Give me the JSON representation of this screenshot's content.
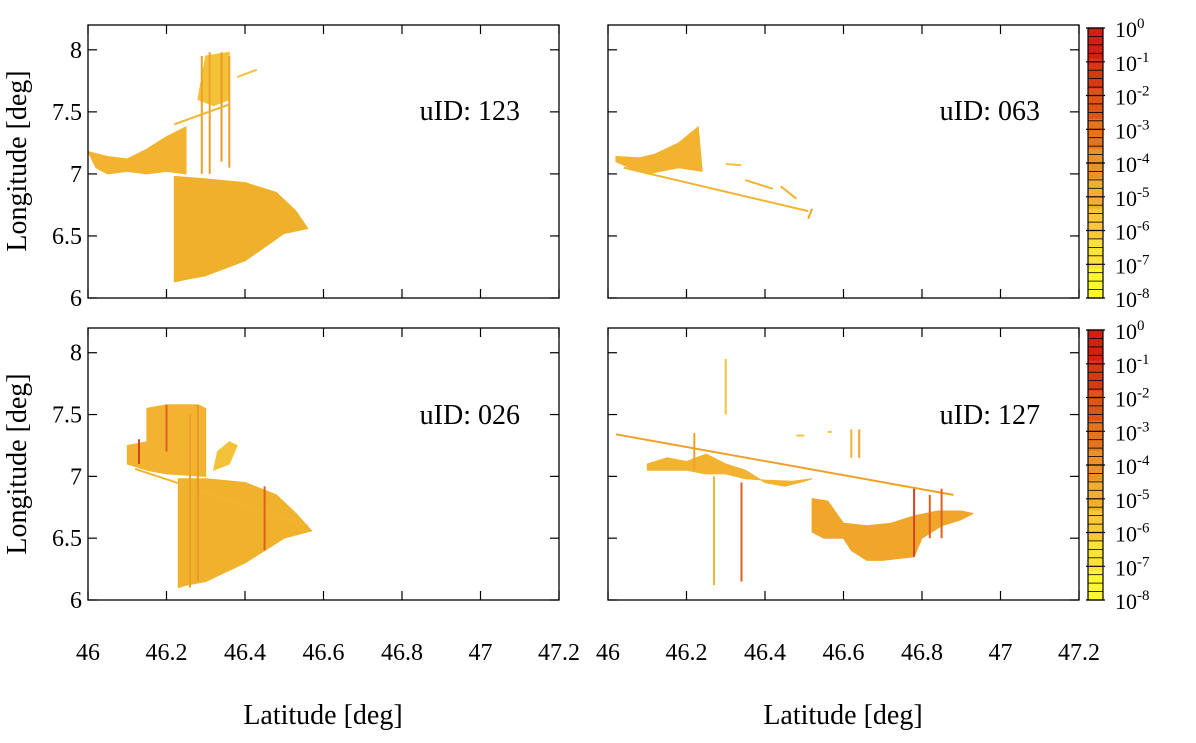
{
  "chart_data": [
    {
      "type": "scatter",
      "panel": "top-left",
      "label": "uID: 123",
      "xlim": [
        46,
        47.2
      ],
      "ylim": [
        6,
        8.2
      ],
      "xticks": [
        "46",
        "46.2",
        "46.4",
        "46.6",
        "46.8",
        "47",
        "47.2"
      ],
      "yticks": [
        "6",
        "6.5",
        "7",
        "7.5",
        "8"
      ],
      "xlabel": "",
      "ylabel": "Longitude [deg]",
      "polys": [
        {
          "pts": [
            [
              46.0,
              7.18
            ],
            [
              46.05,
              7.14
            ],
            [
              46.1,
              7.12
            ],
            [
              46.15,
              7.2
            ],
            [
              46.2,
              7.3
            ],
            [
              46.25,
              7.38
            ],
            [
              46.25,
              7.0
            ],
            [
              46.2,
              7.02
            ],
            [
              46.15,
              7.0
            ],
            [
              46.1,
              7.02
            ],
            [
              46.05,
              7.0
            ],
            [
              46.02,
              7.05
            ]
          ],
          "color": "#f2b430"
        },
        {
          "pts": [
            [
              46.22,
              6.98
            ],
            [
              46.3,
              6.96
            ],
            [
              46.4,
              6.93
            ],
            [
              46.48,
              6.85
            ],
            [
              46.53,
              6.7
            ],
            [
              46.56,
              6.56
            ],
            [
              46.5,
              6.52
            ],
            [
              46.4,
              6.3
            ],
            [
              46.3,
              6.18
            ],
            [
              46.25,
              6.15
            ],
            [
              46.22,
              6.13
            ]
          ],
          "color": "#efb02c"
        },
        {
          "pts": [
            [
              46.28,
              7.6
            ],
            [
              46.3,
              7.95
            ],
            [
              46.36,
              7.98
            ],
            [
              46.36,
              7.6
            ],
            [
              46.32,
              7.55
            ]
          ],
          "color": "#f4c238"
        }
      ],
      "strokes": [
        {
          "x": [
            46.29,
            46.29
          ],
          "y": [
            7.0,
            7.95
          ],
          "color": "#eea028"
        },
        {
          "x": [
            46.31,
            46.31
          ],
          "y": [
            7.0,
            7.98
          ],
          "color": "#eea028"
        },
        {
          "x": [
            46.34,
            46.34
          ],
          "y": [
            7.1,
            7.98
          ],
          "color": "#e89a24"
        },
        {
          "x": [
            46.36,
            46.36
          ],
          "y": [
            7.05,
            7.95
          ],
          "color": "#eea028"
        },
        {
          "x": [
            46.38,
            46.43
          ],
          "y": [
            7.78,
            7.84
          ],
          "color": "#f4c238"
        },
        {
          "x": [
            46.22,
            46.36
          ],
          "y": [
            7.4,
            7.56
          ],
          "color": "#f2b430"
        }
      ]
    },
    {
      "type": "scatter",
      "panel": "top-right",
      "label": "uID: 063",
      "xlim": [
        46,
        47.2
      ],
      "ylim": [
        6,
        8.2
      ],
      "xticks": [
        "46",
        "46.2",
        "46.4",
        "46.6",
        "46.8",
        "47",
        "47.2"
      ],
      "yticks": [
        "6",
        "6.5",
        "7",
        "7.5",
        "8"
      ],
      "xlabel": "",
      "ylabel": "",
      "polys": [
        {
          "pts": [
            [
              46.02,
              7.14
            ],
            [
              46.08,
              7.13
            ],
            [
              46.12,
              7.16
            ],
            [
              46.18,
              7.25
            ],
            [
              46.23,
              7.38
            ],
            [
              46.24,
              7.02
            ],
            [
              46.18,
              7.05
            ],
            [
              46.1,
              7.0
            ],
            [
              46.06,
              7.04
            ],
            [
              46.02,
              7.1
            ]
          ],
          "color": "#f2b430"
        }
      ],
      "strokes": [
        {
          "x": [
            46.04,
            46.51
          ],
          "y": [
            7.05,
            6.7
          ],
          "color": "#f2b430"
        },
        {
          "x": [
            46.51,
            46.52
          ],
          "y": [
            6.64,
            6.72
          ],
          "color": "#efa62a"
        },
        {
          "x": [
            46.35,
            46.42
          ],
          "y": [
            6.95,
            6.88
          ],
          "color": "#f2b430"
        },
        {
          "x": [
            46.44,
            46.48
          ],
          "y": [
            6.9,
            6.8
          ],
          "color": "#f2b430"
        },
        {
          "x": [
            46.3,
            46.34
          ],
          "y": [
            7.08,
            7.07
          ],
          "color": "#f4c238"
        }
      ]
    },
    {
      "type": "scatter",
      "panel": "bottom-left",
      "label": "uID: 026",
      "xlim": [
        46,
        47.2
      ],
      "ylim": [
        6,
        8.2
      ],
      "xticks": [
        "46",
        "46.2",
        "46.4",
        "46.6",
        "46.8",
        "47",
        "47.2"
      ],
      "yticks": [
        "6",
        "6.5",
        "7",
        "7.5",
        "8"
      ],
      "xlabel": "Latitude [deg]",
      "ylabel": "Longitude [deg]",
      "polys": [
        {
          "pts": [
            [
              46.1,
              7.25
            ],
            [
              46.15,
              7.28
            ],
            [
              46.15,
              7.55
            ],
            [
              46.2,
              7.58
            ],
            [
              46.28,
              7.58
            ],
            [
              46.3,
              7.55
            ],
            [
              46.3,
              7.0
            ],
            [
              46.2,
              7.02
            ],
            [
              46.15,
              7.05
            ],
            [
              46.1,
              7.1
            ]
          ],
          "color": "#f2b430"
        },
        {
          "pts": [
            [
              46.23,
              6.98
            ],
            [
              46.3,
              6.98
            ],
            [
              46.4,
              6.95
            ],
            [
              46.48,
              6.85
            ],
            [
              46.53,
              6.7
            ],
            [
              46.57,
              6.56
            ],
            [
              46.5,
              6.5
            ],
            [
              46.4,
              6.3
            ],
            [
              46.3,
              6.15
            ],
            [
              46.25,
              6.12
            ],
            [
              46.23,
              6.1
            ]
          ],
          "color": "#f0b22c"
        },
        {
          "pts": [
            [
              46.32,
              7.05
            ],
            [
              46.36,
              7.1
            ],
            [
              46.38,
              7.25
            ],
            [
              46.36,
              7.28
            ],
            [
              46.33,
              7.2
            ]
          ],
          "color": "#f4c238"
        }
      ],
      "strokes": [
        {
          "x": [
            46.12,
            46.56
          ],
          "y": [
            7.06,
            6.6
          ],
          "color": "#f2b430"
        },
        {
          "x": [
            46.13,
            46.13
          ],
          "y": [
            7.1,
            7.3
          ],
          "color": "#d2431f"
        },
        {
          "x": [
            46.2,
            46.2
          ],
          "y": [
            7.2,
            7.58
          ],
          "color": "#e06020"
        },
        {
          "x": [
            46.26,
            46.26
          ],
          "y": [
            6.1,
            7.5
          ],
          "color": "#eea028"
        },
        {
          "x": [
            46.28,
            46.28
          ],
          "y": [
            6.15,
            7.58
          ],
          "color": "#e89a24"
        },
        {
          "x": [
            46.45,
            46.45
          ],
          "y": [
            6.4,
            6.92
          ],
          "color": "#e06020"
        }
      ]
    },
    {
      "type": "scatter",
      "panel": "bottom-right",
      "label": "uID: 127",
      "xlim": [
        46,
        47.2
      ],
      "ylim": [
        6,
        8.2
      ],
      "xticks": [
        "46",
        "46.2",
        "46.4",
        "46.6",
        "46.8",
        "47",
        "47.2"
      ],
      "yticks": [
        "6",
        "6.5",
        "7",
        "7.5",
        "8"
      ],
      "xlabel": "Latitude [deg]",
      "ylabel": "",
      "polys": [
        {
          "pts": [
            [
              46.1,
              7.1
            ],
            [
              46.15,
              7.15
            ],
            [
              46.2,
              7.12
            ],
            [
              46.25,
              7.18
            ],
            [
              46.3,
              7.1
            ],
            [
              46.35,
              7.05
            ],
            [
              46.4,
              6.95
            ],
            [
              46.45,
              6.92
            ],
            [
              46.5,
              6.96
            ],
            [
              46.52,
              6.98
            ],
            [
              46.47,
              6.96
            ],
            [
              46.4,
              6.97
            ],
            [
              46.35,
              6.98
            ],
            [
              46.3,
              7.02
            ],
            [
              46.25,
              7.02
            ],
            [
              46.2,
              7.05
            ],
            [
              46.15,
              7.05
            ],
            [
              46.1,
              7.05
            ]
          ],
          "color": "#f2b430"
        },
        {
          "pts": [
            [
              46.52,
              6.82
            ],
            [
              46.56,
              6.8
            ],
            [
              46.6,
              6.62
            ],
            [
              46.66,
              6.6
            ],
            [
              46.72,
              6.62
            ],
            [
              46.78,
              6.68
            ],
            [
              46.84,
              6.72
            ],
            [
              46.9,
              6.72
            ],
            [
              46.93,
              6.7
            ],
            [
              46.9,
              6.65
            ],
            [
              46.85,
              6.6
            ],
            [
              46.8,
              6.5
            ],
            [
              46.78,
              6.35
            ],
            [
              46.7,
              6.32
            ],
            [
              46.66,
              6.32
            ],
            [
              46.62,
              6.4
            ],
            [
              46.6,
              6.5
            ],
            [
              46.55,
              6.5
            ],
            [
              46.52,
              6.55
            ]
          ],
          "color": "#efa62a"
        }
      ],
      "strokes": [
        {
          "x": [
            46.02,
            46.88
          ],
          "y": [
            7.34,
            6.85
          ],
          "color": "#eea028"
        },
        {
          "x": [
            46.3,
            46.3
          ],
          "y": [
            7.5,
            7.95
          ],
          "color": "#f4c238"
        },
        {
          "x": [
            46.27,
            46.27
          ],
          "y": [
            6.12,
            7.0
          ],
          "color": "#f2b430"
        },
        {
          "x": [
            46.34,
            46.34
          ],
          "y": [
            6.15,
            6.95
          ],
          "color": "#e06020"
        },
        {
          "x": [
            46.22,
            46.22
          ],
          "y": [
            7.05,
            7.35
          ],
          "color": "#eea028"
        },
        {
          "x": [
            46.62,
            46.62
          ],
          "y": [
            7.15,
            7.38
          ],
          "color": "#f2b430"
        },
        {
          "x": [
            46.64,
            46.64
          ],
          "y": [
            7.15,
            7.38
          ],
          "color": "#efa62a"
        },
        {
          "x": [
            46.48,
            46.5
          ],
          "y": [
            7.33,
            7.33
          ],
          "color": "#f4c238"
        },
        {
          "x": [
            46.56,
            46.57
          ],
          "y": [
            7.36,
            7.36
          ],
          "color": "#f4c238"
        },
        {
          "x": [
            46.78,
            46.78
          ],
          "y": [
            6.35,
            6.9
          ],
          "color": "#d2431f"
        },
        {
          "x": [
            46.82,
            46.82
          ],
          "y": [
            6.5,
            6.85
          ],
          "color": "#e06020"
        },
        {
          "x": [
            46.85,
            46.85
          ],
          "y": [
            6.5,
            6.9
          ],
          "color": "#e06020"
        }
      ]
    }
  ],
  "colorbar": {
    "tick_labels": [
      {
        "base": "10",
        "exp": "0"
      },
      {
        "base": "10",
        "exp": "-1"
      },
      {
        "base": "10",
        "exp": "-2"
      },
      {
        "base": "10",
        "exp": "-3"
      },
      {
        "base": "10",
        "exp": "-4"
      },
      {
        "base": "10",
        "exp": "-5"
      },
      {
        "base": "10",
        "exp": "-6"
      },
      {
        "base": "10",
        "exp": "-7"
      },
      {
        "base": "10",
        "exp": "-8"
      }
    ],
    "colors": [
      "#fff830",
      "#fde23a",
      "#f8c838",
      "#f2ae30",
      "#ec9228",
      "#e47420",
      "#dc5418",
      "#d63a14",
      "#d02010"
    ]
  }
}
